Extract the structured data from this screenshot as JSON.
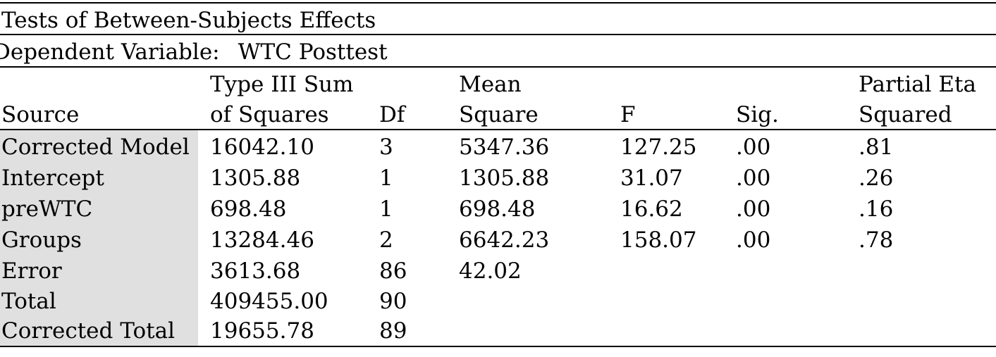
{
  "table": {
    "title": "Tests of Between-Subjects Effects",
    "dependent_variable": {
      "label": "Dependent Variable:",
      "value": "WTC Posttest"
    },
    "headers": {
      "source": "Source",
      "sum_of_squares": [
        "Type III Sum",
        "of Squares"
      ],
      "df": "Df",
      "mean_square": [
        "Mean",
        "Square"
      ],
      "f": "F",
      "sig": "Sig.",
      "partial_eta_squared": [
        "Partial Eta",
        "Squared"
      ]
    },
    "rows": [
      {
        "source": "Corrected Model",
        "ss": "16042.10",
        "df": "3",
        "ms": "5347.36",
        "f": "127.25",
        "sig": ".00",
        "eta": ".81"
      },
      {
        "source": "Intercept",
        "ss": "1305.88",
        "df": "1",
        "ms": "1305.88",
        "f": "31.07",
        "sig": ".00",
        "eta": ".26"
      },
      {
        "source": "preWTC",
        "ss": "698.48",
        "df": "1",
        "ms": "698.48",
        "f": "16.62",
        "sig": ".00",
        "eta": ".16"
      },
      {
        "source": "Groups",
        "ss": "13284.46",
        "df": "2",
        "ms": "6642.23",
        "f": "158.07",
        "sig": ".00",
        "eta": ".78"
      },
      {
        "source": "Error",
        "ss": "3613.68",
        "df": "86",
        "ms": "42.02",
        "f": "",
        "sig": "",
        "eta": ""
      },
      {
        "source": "Total",
        "ss": "409455.00",
        "df": "90",
        "ms": "",
        "f": "",
        "sig": "",
        "eta": ""
      },
      {
        "source": "Corrected Total",
        "ss": "19655.78",
        "df": "89",
        "ms": "",
        "f": "",
        "sig": "",
        "eta": ""
      }
    ]
  }
}
